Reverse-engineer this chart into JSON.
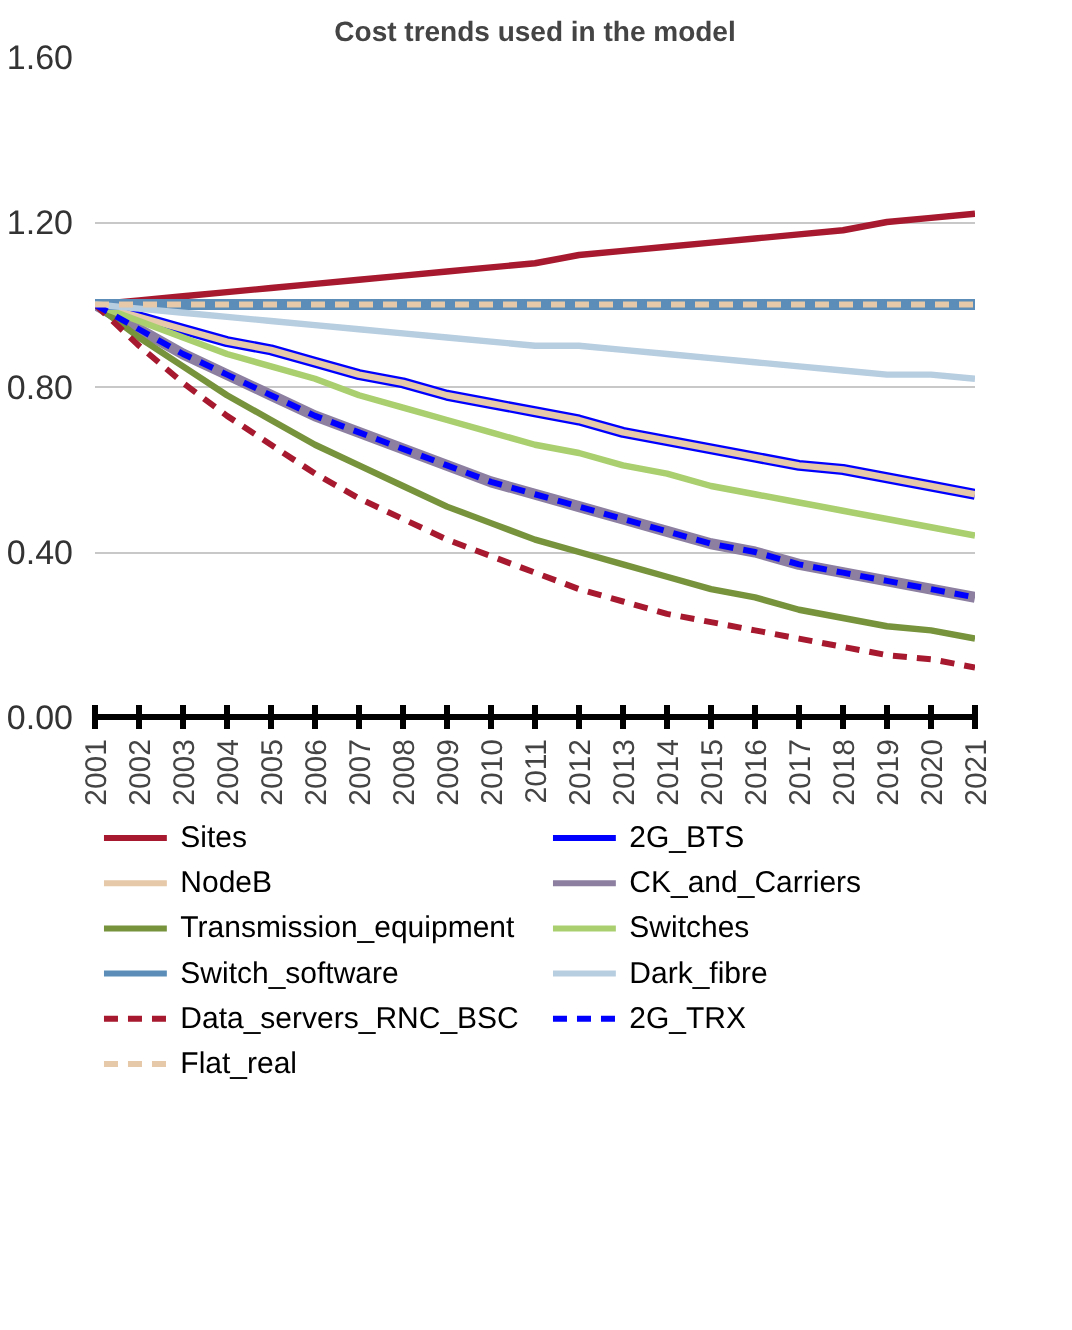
{
  "chart_data": {
    "type": "line",
    "title": "Cost trends used in the model",
    "x": [
      2001,
      2002,
      2003,
      2004,
      2005,
      2006,
      2007,
      2008,
      2009,
      2010,
      2011,
      2012,
      2013,
      2014,
      2015,
      2016,
      2017,
      2018,
      2019,
      2020,
      2021
    ],
    "xlim": [
      2001,
      2021
    ],
    "xticks": [
      2001,
      2002,
      2003,
      2004,
      2005,
      2006,
      2007,
      2008,
      2009,
      2010,
      2011,
      2012,
      2013,
      2014,
      2015,
      2016,
      2017,
      2018,
      2019,
      2020,
      2021
    ],
    "ylim": [
      0,
      1.6
    ],
    "yticks": [
      {
        "value": 0,
        "label": "0.00"
      },
      {
        "value": 0.4,
        "label": "0.40"
      },
      {
        "value": 0.8,
        "label": "0.80"
      },
      {
        "value": 1.2,
        "label": "1.20"
      },
      {
        "value": 1.6,
        "label": "1.60"
      }
    ],
    "grid": "y",
    "legend": "bottom",
    "marker": "none",
    "series": [
      {
        "name": "Sites",
        "color": "#a6192e",
        "line_style": "solid",
        "values": [
          1.0,
          1.01,
          1.02,
          1.03,
          1.04,
          1.05,
          1.06,
          1.07,
          1.08,
          1.09,
          1.1,
          1.12,
          1.13,
          1.14,
          1.15,
          1.16,
          1.17,
          1.18,
          1.2,
          1.21,
          1.22
        ]
      },
      {
        "name": "2G_BTS",
        "color": "#0000ff",
        "line_style": "solid",
        "values": [
          1.0,
          0.97,
          0.94,
          0.91,
          0.89,
          0.86,
          0.83,
          0.81,
          0.78,
          0.76,
          0.74,
          0.72,
          0.69,
          0.67,
          0.65,
          0.63,
          0.61,
          0.6,
          0.58,
          0.56,
          0.54
        ]
      },
      {
        "name": "NodeB",
        "color": "#e6c9a8",
        "line_style": "solid",
        "values": [
          1.0,
          0.97,
          0.94,
          0.91,
          0.89,
          0.86,
          0.83,
          0.81,
          0.78,
          0.76,
          0.74,
          0.72,
          0.69,
          0.67,
          0.65,
          0.63,
          0.61,
          0.6,
          0.58,
          0.56,
          0.54
        ]
      },
      {
        "name": "CK_and_Carriers",
        "color": "#8c7fa0",
        "line_style": "solid",
        "values": [
          1.0,
          0.94,
          0.88,
          0.83,
          0.78,
          0.73,
          0.69,
          0.65,
          0.61,
          0.57,
          0.54,
          0.51,
          0.48,
          0.45,
          0.42,
          0.4,
          0.37,
          0.35,
          0.33,
          0.31,
          0.29
        ]
      },
      {
        "name": "Transmission_equipment",
        "color": "#77933c",
        "line_style": "solid",
        "values": [
          1.0,
          0.92,
          0.85,
          0.78,
          0.72,
          0.66,
          0.61,
          0.56,
          0.51,
          0.47,
          0.43,
          0.4,
          0.37,
          0.34,
          0.31,
          0.29,
          0.26,
          0.24,
          0.22,
          0.21,
          0.19
        ]
      },
      {
        "name": "Switches",
        "color": "#a9cf6e",
        "line_style": "solid",
        "values": [
          1.0,
          0.96,
          0.92,
          0.88,
          0.85,
          0.82,
          0.78,
          0.75,
          0.72,
          0.69,
          0.66,
          0.64,
          0.61,
          0.59,
          0.56,
          0.54,
          0.52,
          0.5,
          0.48,
          0.46,
          0.44
        ]
      },
      {
        "name": "Switch_software",
        "color": "#5b8db8",
        "line_style": "solid",
        "values": [
          1.0,
          1.0,
          1.0,
          1.0,
          1.0,
          1.0,
          1.0,
          1.0,
          1.0,
          1.0,
          1.0,
          1.0,
          1.0,
          1.0,
          1.0,
          1.0,
          1.0,
          1.0,
          1.0,
          1.0,
          1.0
        ]
      },
      {
        "name": "Dark_fibre",
        "color": "#b7cde0",
        "line_style": "solid",
        "values": [
          1.0,
          0.99,
          0.98,
          0.97,
          0.96,
          0.95,
          0.94,
          0.93,
          0.92,
          0.91,
          0.9,
          0.9,
          0.89,
          0.88,
          0.87,
          0.86,
          0.85,
          0.84,
          0.83,
          0.83,
          0.82
        ]
      },
      {
        "name": "Data_servers_RNC_BSC",
        "color": "#a6192e",
        "line_style": "dashed",
        "values": [
          1.0,
          0.9,
          0.81,
          0.73,
          0.66,
          0.59,
          0.53,
          0.48,
          0.43,
          0.39,
          0.35,
          0.31,
          0.28,
          0.25,
          0.23,
          0.21,
          0.19,
          0.17,
          0.15,
          0.14,
          0.12
        ]
      },
      {
        "name": "2G_TRX",
        "color": "#0000ff",
        "line_style": "dashed",
        "values": [
          1.0,
          0.94,
          0.88,
          0.83,
          0.78,
          0.73,
          0.69,
          0.65,
          0.61,
          0.57,
          0.54,
          0.51,
          0.48,
          0.45,
          0.42,
          0.4,
          0.37,
          0.35,
          0.33,
          0.31,
          0.29
        ]
      },
      {
        "name": "Flat_real",
        "color": "#e6c9a8",
        "line_style": "dashed",
        "values": [
          1.0,
          1.0,
          1.0,
          1.0,
          1.0,
          1.0,
          1.0,
          1.0,
          1.0,
          1.0,
          1.0,
          1.0,
          1.0,
          1.0,
          1.0,
          1.0,
          1.0,
          1.0,
          1.0,
          1.0,
          1.0
        ]
      }
    ]
  }
}
